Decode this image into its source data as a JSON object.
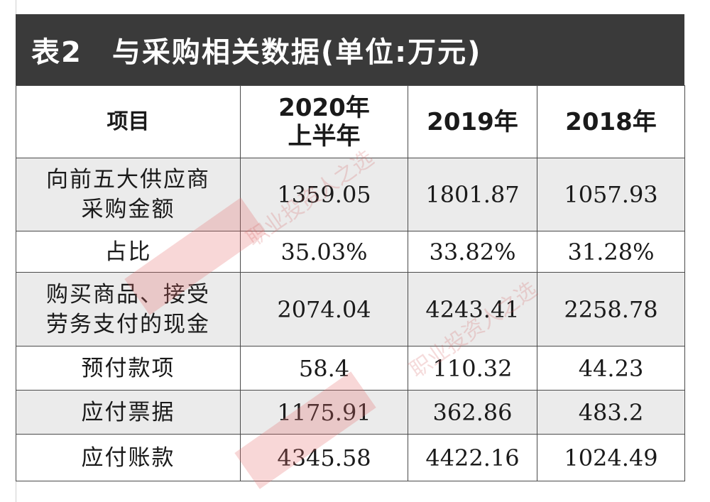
{
  "title": "表2　与采购相关数据(单位:万元)",
  "headers": {
    "item": "项目",
    "col1_line1": "2020年",
    "col1_line2": "上半年",
    "col2": "2019年",
    "col3": "2018年"
  },
  "rows": [
    {
      "label_line1": "向前五大供应商",
      "label_line2": "采购金额",
      "v1": "1359.05",
      "v2": "1801.87",
      "v3": "1057.93"
    },
    {
      "label_line1": "占比",
      "label_line2": "",
      "v1": "35.03%",
      "v2": "33.82%",
      "v3": "31.28%"
    },
    {
      "label_line1": "购买商品、接受",
      "label_line2": "劳务支付的现金",
      "v1": "2074.04",
      "v2": "4243.41",
      "v3": "2258.78"
    },
    {
      "label_line1": "预付款项",
      "label_line2": "",
      "v1": "58.4",
      "v2": "110.32",
      "v3": "44.23"
    },
    {
      "label_line1": "应付票据",
      "label_line2": "",
      "v1": "1175.91",
      "v2": "362.86",
      "v3": "483.2"
    },
    {
      "label_line1": "应付账款",
      "label_line2": "",
      "v1": "4345.58",
      "v2": "4422.16",
      "v3": "1024.49"
    }
  ],
  "watermark": "职业投资人之选",
  "colors": {
    "title_bg": "#3a3a3a",
    "shade_row": "#ebebeb",
    "watermark": "#d25a5a"
  }
}
